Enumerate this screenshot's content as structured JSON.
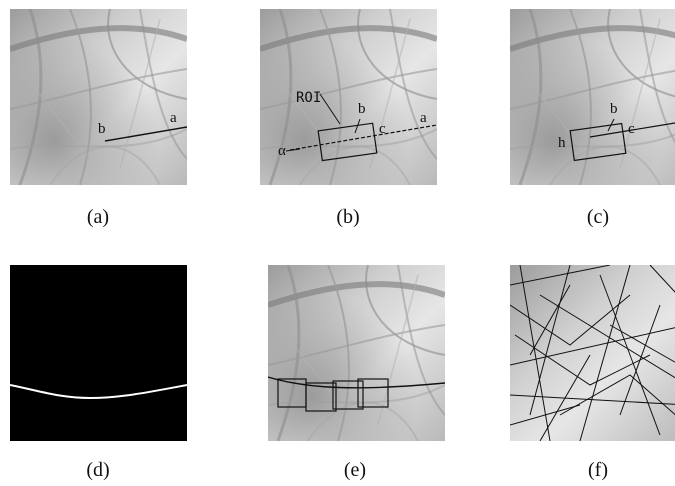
{
  "captions": [
    "(a)",
    "(b)",
    "(c)",
    "(d)",
    "(e)",
    "(f)"
  ],
  "panel_a": {
    "labels": {
      "b": "b",
      "a": "a"
    }
  },
  "panel_b": {
    "labels": {
      "roi": "ROI",
      "b": "b",
      "c": "c",
      "a": "a",
      "alpha": "α"
    }
  },
  "panel_c": {
    "labels": {
      "b": "b",
      "c": "c",
      "h": "h"
    }
  },
  "colors": {
    "background": "#ffffff",
    "palm_dark": "#8a8a8a",
    "palm_light": "#dcdcdc",
    "line": "#1a1a1a",
    "mask_bg": "#000000",
    "mask_line": "#ffffff"
  }
}
